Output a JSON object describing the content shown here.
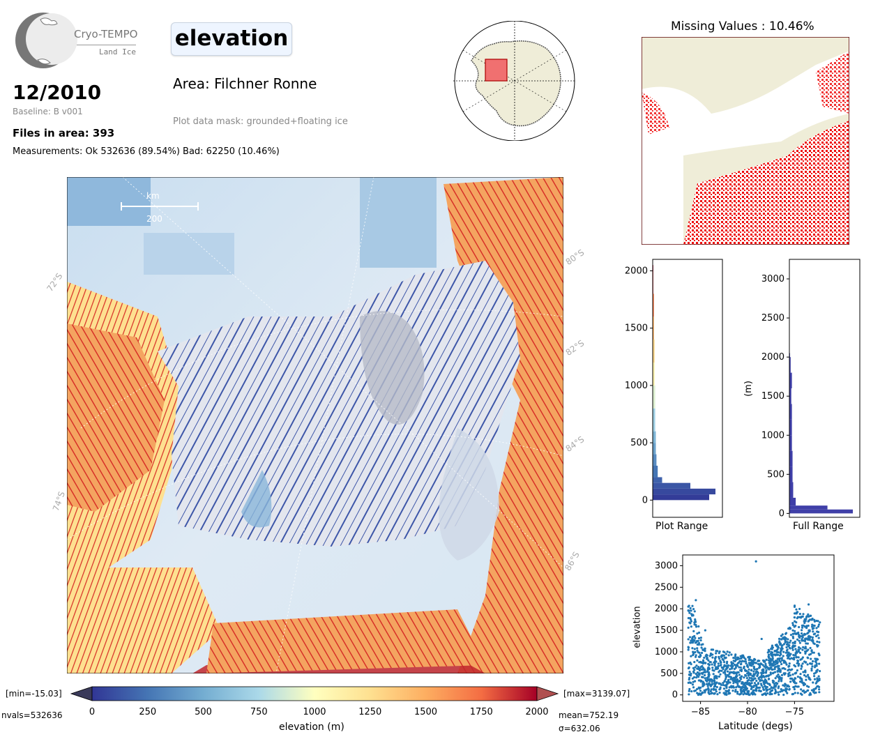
{
  "logo": {
    "name": "Cryo-TEMPO",
    "sub": "Land Ice"
  },
  "header": {
    "title": "elevation",
    "date": "12/2010",
    "baseline": "Baseline: B v001",
    "files": "Files in area: 393",
    "measurements": "Measurements: Ok 532636 (89.54%) Bad: 62250 (10.46%)",
    "area": "Area: Filchner Ronne",
    "mask": "Plot data mask: grounded+floating ice"
  },
  "map": {
    "scale_unit": "km",
    "scale_value": "200",
    "lat_labels": [
      "72°S",
      "74°S",
      "80°S",
      "82°S",
      "84°S",
      "86°S"
    ]
  },
  "colorbar": {
    "min_label": "[min=-15.03]",
    "max_label": "[max=3139.07]",
    "nvals": "nvals=532636",
    "mean": "mean=752.19",
    "sigma": "σ=632.06",
    "label": "elevation (m)",
    "ticks": [
      "0",
      "250",
      "500",
      "750",
      "1000",
      "1250",
      "1500",
      "1750",
      "2000"
    ]
  },
  "missing": {
    "title": "Missing Values : 10.46%"
  },
  "hist_plot": {
    "xlabel": "Plot Range",
    "ticks": [
      "0",
      "500",
      "1000",
      "1500",
      "2000"
    ]
  },
  "hist_full": {
    "xlabel": "Full Range",
    "ylabel": "(m)",
    "ticks": [
      "0",
      "500",
      "1000",
      "1500",
      "2000",
      "2500",
      "3000"
    ]
  },
  "scatter": {
    "xlabel": "Latitude (degs)",
    "ylabel": "elevation",
    "xticks": [
      "−85",
      "−80",
      "−75"
    ],
    "yticks": [
      "0",
      "500",
      "1000",
      "1500",
      "2000",
      "2500",
      "3000"
    ]
  },
  "chart_data": [
    {
      "type": "bar",
      "orientation": "horizontal",
      "xlabel": "Plot Range",
      "ylim": [
        -150,
        2100
      ],
      "bins": [
        0,
        50,
        100,
        150,
        200,
        300,
        400,
        500,
        600,
        800,
        1000,
        1200,
        1400,
        1600,
        1800,
        2000
      ],
      "counts": [
        90,
        100,
        60,
        15,
        8,
        6,
        5,
        5,
        4,
        4,
        3,
        3,
        2,
        2,
        1,
        1
      ],
      "colors": "elevation colormap"
    },
    {
      "type": "bar",
      "orientation": "horizontal",
      "xlabel": "Full Range",
      "ylabel": "(m)",
      "ylim": [
        -50,
        3250
      ],
      "bins": [
        0,
        50,
        100,
        200,
        400,
        600,
        800,
        1000,
        1200,
        1400,
        1600,
        1800,
        2000
      ],
      "counts": [
        100,
        60,
        10,
        6,
        5,
        5,
        4,
        4,
        4,
        3,
        4,
        2,
        1
      ],
      "color": "#3f3fa8"
    },
    {
      "type": "scatter",
      "xlabel": "Latitude (degs)",
      "ylabel": "elevation",
      "xlim": [
        -86.9,
        -70.8
      ],
      "ylim": [
        -150,
        3250
      ],
      "color": "#1f77b4",
      "x": [
        -86.3,
        -85.5,
        -84.5,
        -83.5,
        -82,
        -80,
        -78.5,
        -77,
        -76,
        -75,
        -73.5,
        -72.5
      ],
      "y": [
        2050,
        2200,
        1500,
        300,
        100,
        80,
        1300,
        50,
        600,
        1800,
        2100,
        200
      ]
    }
  ]
}
